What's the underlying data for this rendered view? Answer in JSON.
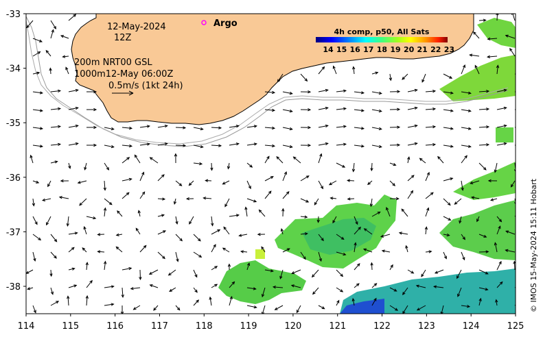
{
  "map": {
    "date": "12-May-2024",
    "time": "12Z",
    "legend_line1": "200m  NRT00 GSL",
    "legend_line2": "1000m12-May 06:00Z",
    "scale_label": "0.5m/s (1kt 24h)",
    "argo_label": "Argo",
    "colorbar_title": "4h comp, p50, All Sats",
    "colorbar_ticks": [
      "14",
      "15",
      "16",
      "17",
      "18",
      "19",
      "20",
      "21",
      "22",
      "23"
    ],
    "colorbar_colors": [
      "#00007f",
      "#0000ff",
      "#0080ff",
      "#00ffff",
      "#40ff80",
      "#a0ff20",
      "#ffff00",
      "#ff9000",
      "#ff2000",
      "#800000"
    ],
    "credit": "© IMOS 15-May-2024 15:11 Hobart",
    "lon_ticks": [
      "114",
      "115",
      "116",
      "117",
      "118",
      "119",
      "120",
      "121",
      "122",
      "123",
      "124",
      "125"
    ],
    "lat_ticks": [
      "-33",
      "-34",
      "-35",
      "-36",
      "-37",
      "-38"
    ],
    "land_color": "#f9c996",
    "argo_color": "#ff00ff"
  }
}
